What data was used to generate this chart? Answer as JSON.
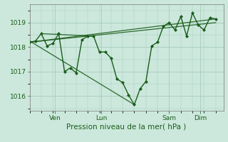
{
  "background_color": "#cce8dc",
  "grid_color": "#aacfc0",
  "line_color": "#1a5c1a",
  "marker_color": "#1a5c1a",
  "xlabel": "Pression niveau de la mer( hPa )",
  "xlabel_fontsize": 7.5,
  "tick_fontsize": 6.5,
  "xlim": [
    0,
    100
  ],
  "ylim": [
    1015.4,
    1019.75
  ],
  "yticks": [
    1016,
    1017,
    1018,
    1019
  ],
  "xtick_positions": [
    13,
    37,
    72,
    88
  ],
  "xtick_labels": [
    "Ven",
    "Lun",
    "Sam",
    "Dim"
  ],
  "series": [
    [
      0,
      1018.2
    ],
    [
      3,
      1018.25
    ],
    [
      6,
      1018.55
    ],
    [
      9,
      1018.05
    ],
    [
      12,
      1018.15
    ],
    [
      15,
      1018.55
    ],
    [
      18,
      1017.0
    ],
    [
      21,
      1017.15
    ],
    [
      24,
      1016.95
    ],
    [
      27,
      1018.3
    ],
    [
      30,
      1018.45
    ],
    [
      33,
      1018.45
    ],
    [
      36,
      1017.8
    ],
    [
      39,
      1017.8
    ],
    [
      42,
      1017.55
    ],
    [
      45,
      1016.7
    ],
    [
      48,
      1016.55
    ],
    [
      51,
      1016.05
    ],
    [
      54,
      1015.65
    ],
    [
      57,
      1016.3
    ],
    [
      60,
      1016.6
    ],
    [
      63,
      1018.05
    ],
    [
      66,
      1018.2
    ],
    [
      69,
      1018.85
    ],
    [
      72,
      1019.0
    ],
    [
      75,
      1018.7
    ],
    [
      78,
      1019.25
    ],
    [
      81,
      1018.45
    ],
    [
      84,
      1019.4
    ],
    [
      87,
      1018.9
    ],
    [
      90,
      1018.7
    ],
    [
      93,
      1019.2
    ],
    [
      96,
      1019.15
    ]
  ],
  "extra_lines": [
    {
      "x": [
        0,
        96
      ],
      "y": [
        1018.2,
        1019.15
      ]
    },
    {
      "x": [
        0,
        96
      ],
      "y": [
        1018.2,
        1019.0
      ]
    },
    {
      "x": [
        0,
        54
      ],
      "y": [
        1018.25,
        1015.65
      ]
    },
    {
      "x": [
        6,
        33
      ],
      "y": [
        1018.55,
        1018.45
      ]
    }
  ]
}
